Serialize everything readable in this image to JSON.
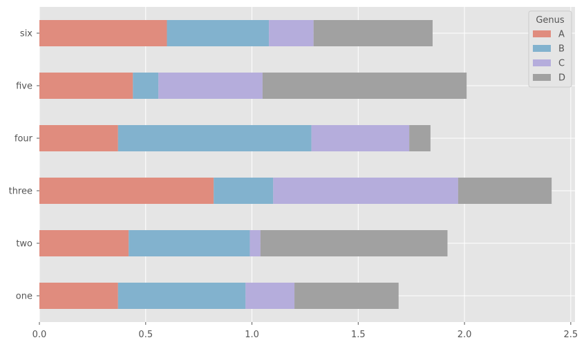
{
  "chart_data": {
    "type": "bar",
    "orientation": "horizontal",
    "stacked": true,
    "categories": [
      "one",
      "two",
      "three",
      "four",
      "five",
      "six"
    ],
    "series": [
      {
        "name": "A",
        "color": "#e08c7e",
        "values": [
          0.37,
          0.42,
          0.82,
          0.37,
          0.44,
          0.6
        ]
      },
      {
        "name": "B",
        "color": "#82b2ce",
        "values": [
          0.6,
          0.57,
          0.28,
          0.91,
          0.12,
          0.48
        ]
      },
      {
        "name": "C",
        "color": "#b5addc",
        "values": [
          0.23,
          0.05,
          0.87,
          0.46,
          0.49,
          0.21
        ]
      },
      {
        "name": "D",
        "color": "#a1a1a1",
        "values": [
          0.49,
          0.88,
          0.44,
          0.1,
          0.96,
          0.56
        ]
      }
    ],
    "xlim": [
      0,
      2.52
    ],
    "xticks": [
      0.0,
      0.5,
      1.0,
      1.5,
      2.0,
      2.5
    ],
    "xtick_labels": [
      "0.0",
      "0.5",
      "1.0",
      "1.5",
      "2.0",
      "2.5"
    ],
    "grid": true,
    "legend": {
      "title": "Genus",
      "placement": "top-right"
    },
    "style": {
      "background": "#e5e5e5",
      "gridcolor": "#ffffff"
    }
  }
}
